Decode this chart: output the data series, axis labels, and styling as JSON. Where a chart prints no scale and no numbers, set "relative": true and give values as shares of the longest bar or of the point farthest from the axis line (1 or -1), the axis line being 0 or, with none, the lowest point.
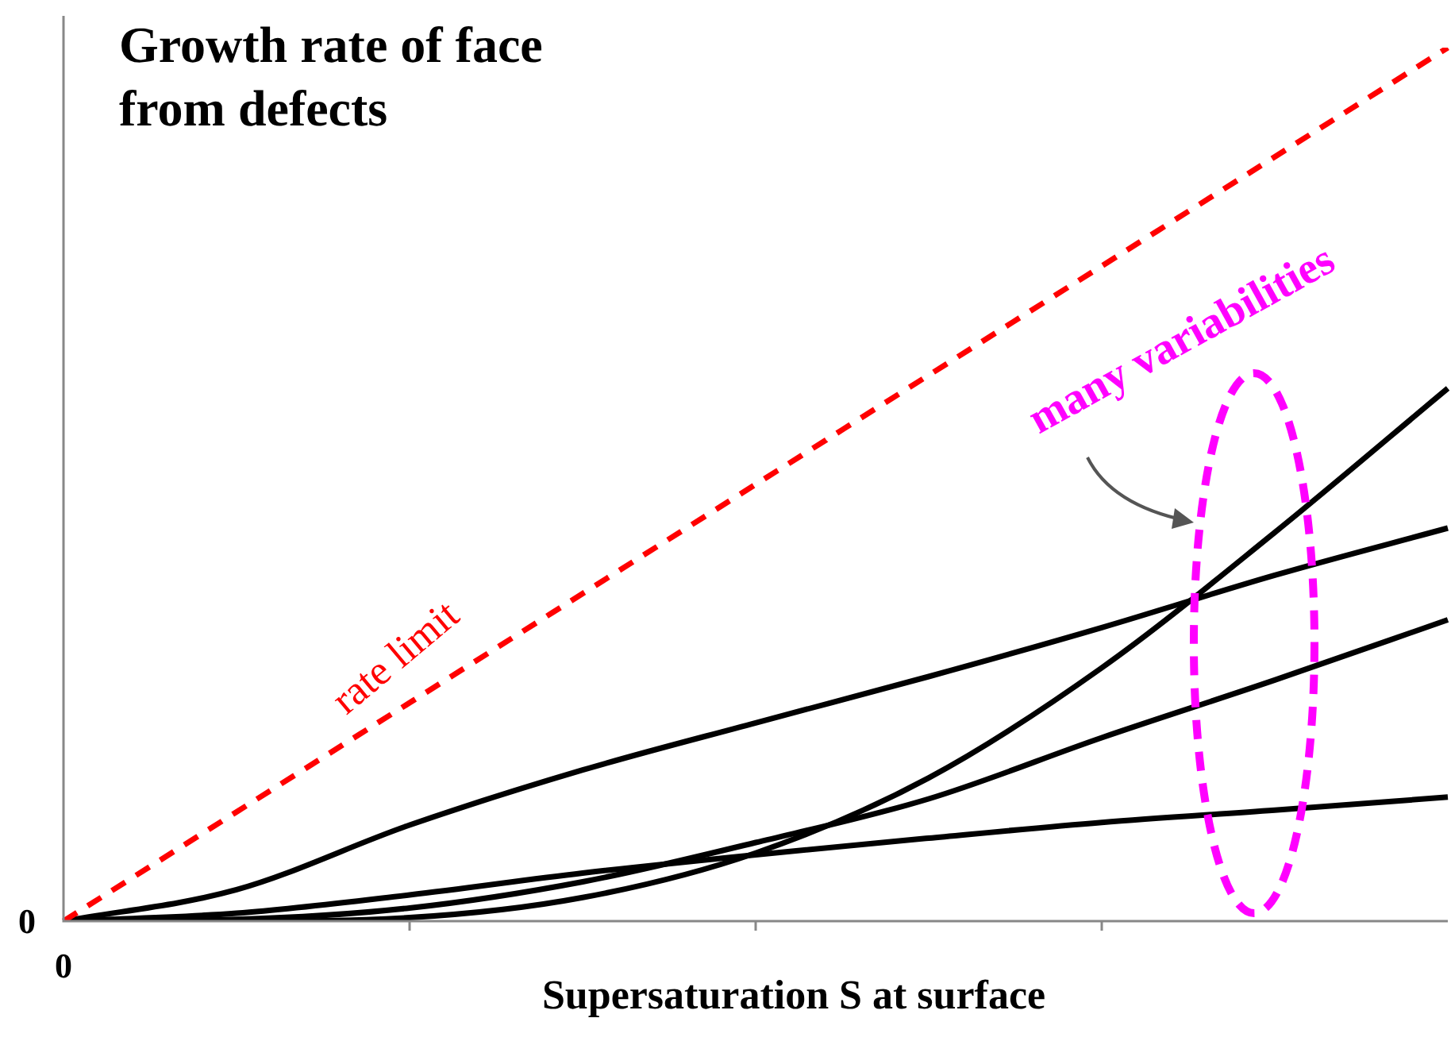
{
  "chart_data": {
    "type": "line",
    "title": "Growth rate of face from defects",
    "xlabel": "Supersaturation S at surface",
    "relative": true,
    "legend": false,
    "grid": false,
    "marker": "none",
    "categories": [
      null,
      null,
      null,
      null,
      null,
      null,
      null,
      null,
      null
    ],
    "series": [
      {
        "color": "#ff0000",
        "line_style": "dashed",
        "values": [
          0,
          0.125,
          0.25,
          0.375,
          0.5,
          0.625,
          0.75,
          0.875,
          1
        ]
      },
      {
        "color": "#000000",
        "values": [
          0,
          0,
          0.004,
          0.027,
          0.078,
          0.164,
          0.29,
          0.445,
          0.61
        ]
      },
      {
        "color": "#000000",
        "values": [
          0,
          0.036,
          0.11,
          0.173,
          0.227,
          0.28,
          0.336,
          0.396,
          0.45
        ]
      },
      {
        "color": "#000000",
        "values": [
          0,
          0.002,
          0.015,
          0.045,
          0.09,
          0.14,
          0.21,
          0.276,
          0.345
        ]
      },
      {
        "color": "#000000",
        "values": [
          0,
          0.009,
          0.03,
          0.055,
          0.076,
          0.095,
          0.113,
          0.127,
          0.142
        ]
      }
    ],
    "annotations": [
      "rate limit",
      "many variabilities",
      "0",
      "0"
    ]
  }
}
